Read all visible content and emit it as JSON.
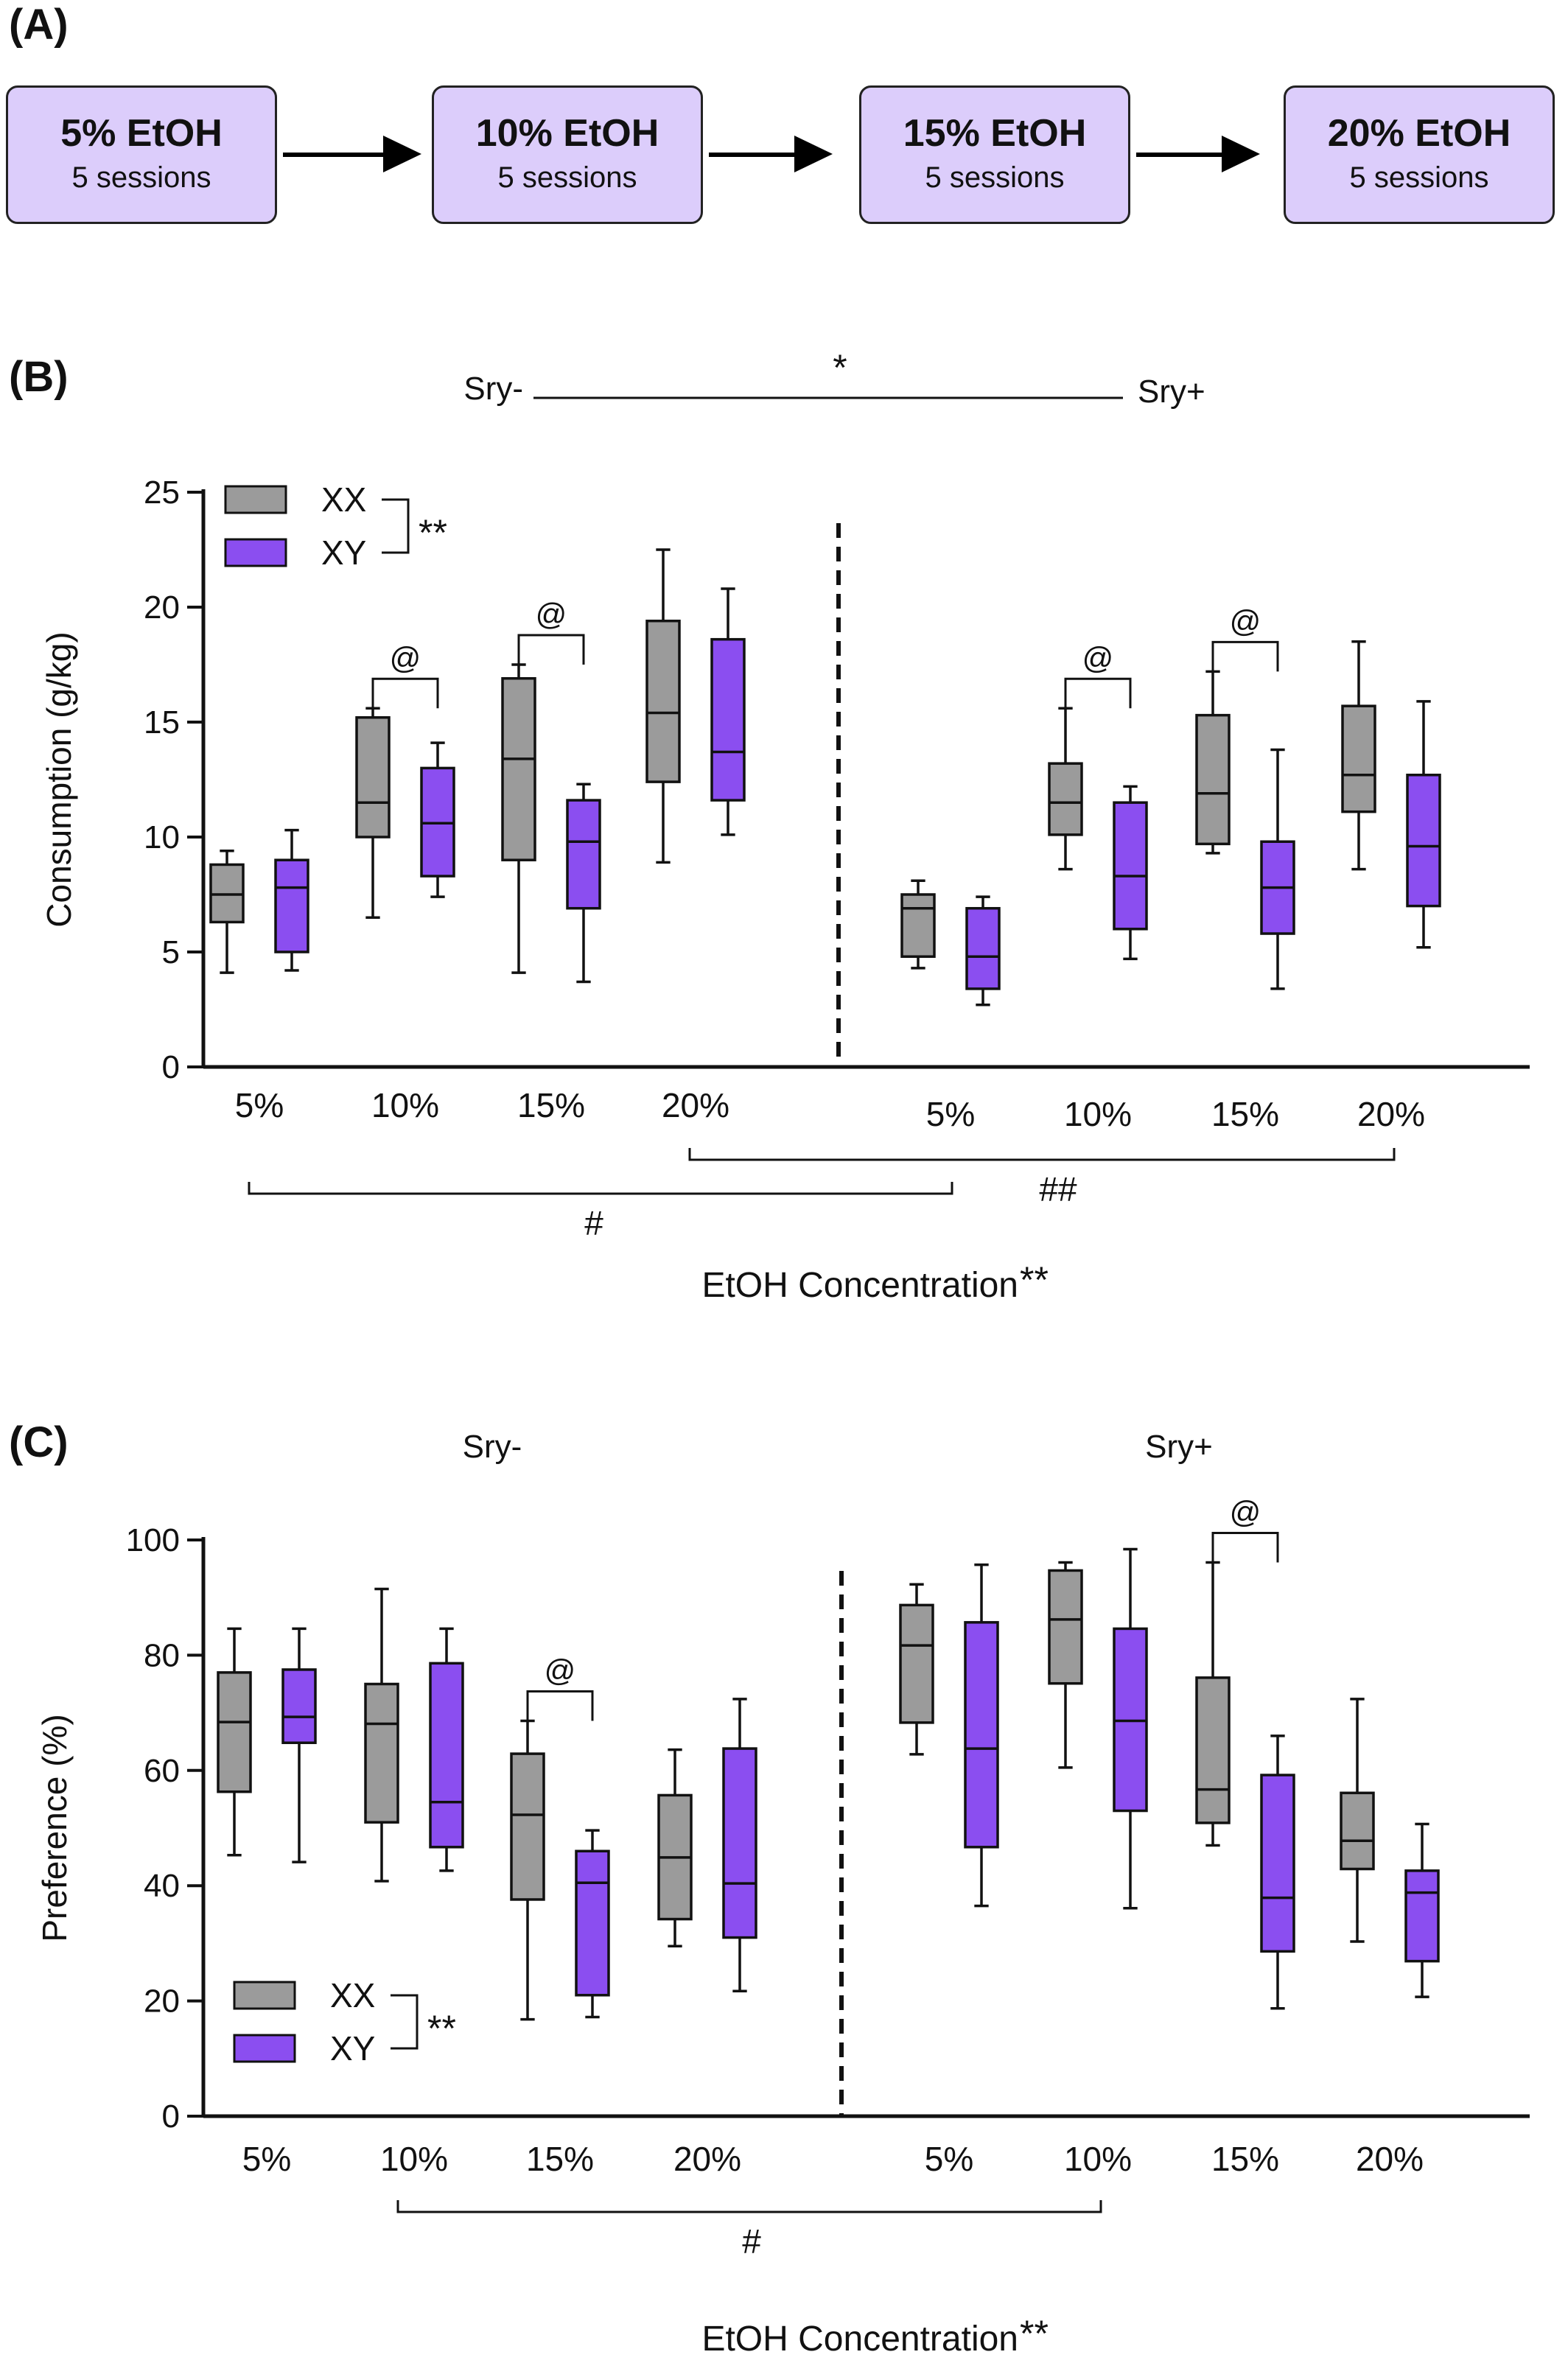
{
  "panel_a": {
    "label": "(A)",
    "steps": [
      {
        "concentration": "5% EtOH",
        "sessions": "5 sessions"
      },
      {
        "concentration": "10% EtOH",
        "sessions": "5 sessions"
      },
      {
        "concentration": "15% EtOH",
        "sessions": "5 sessions"
      },
      {
        "concentration": "20% EtOH",
        "sessions": "5 sessions"
      }
    ]
  },
  "colors": {
    "XX": "#9b9b9b",
    "XY": "#8b4ef0",
    "line": "#111111"
  },
  "chart_data": [
    {
      "id": "B",
      "panel_label": "(B)",
      "type": "box",
      "ylabel": "Consumption (g/kg)",
      "xlabel": "EtOH Concentration",
      "xlabel_mark": "**",
      "ylim": [
        0,
        25
      ],
      "yticks": [
        0,
        5,
        10,
        15,
        20,
        25
      ],
      "legend": {
        "position": "top-left",
        "entries": [
          "XX",
          "XY"
        ],
        "mark": "**"
      },
      "groups": [
        {
          "name": "Sry-",
          "categories": [
            "5%",
            "10%",
            "15%",
            "20%"
          ],
          "series": [
            {
              "name": "XX",
              "boxes": [
                {
                  "min": 4.1,
                  "q1": 6.3,
                  "median": 7.5,
                  "q3": 8.8,
                  "max": 9.4
                },
                {
                  "min": 6.5,
                  "q1": 10.0,
                  "median": 11.5,
                  "q3": 15.2,
                  "max": 15.6
                },
                {
                  "min": 4.1,
                  "q1": 9.0,
                  "median": 13.4,
                  "q3": 16.9,
                  "max": 17.5
                },
                {
                  "min": 8.9,
                  "q1": 12.4,
                  "median": 15.4,
                  "q3": 19.4,
                  "max": 22.5
                }
              ]
            },
            {
              "name": "XY",
              "boxes": [
                {
                  "min": 4.2,
                  "q1": 5.0,
                  "median": 7.8,
                  "q3": 9.0,
                  "max": 10.3
                },
                {
                  "min": 7.4,
                  "q1": 8.3,
                  "median": 10.6,
                  "q3": 13.0,
                  "max": 14.1
                },
                {
                  "min": 3.7,
                  "q1": 6.9,
                  "median": 9.8,
                  "q3": 11.6,
                  "max": 12.3
                },
                {
                  "min": 10.1,
                  "q1": 11.6,
                  "median": 13.7,
                  "q3": 18.6,
                  "max": 20.8
                }
              ]
            }
          ]
        },
        {
          "name": "Sry+",
          "categories": [
            "5%",
            "10%",
            "15%",
            "20%"
          ],
          "series": [
            {
              "name": "XX",
              "boxes": [
                {
                  "min": 4.3,
                  "q1": 4.8,
                  "median": 6.9,
                  "q3": 7.5,
                  "max": 8.1
                },
                {
                  "min": 8.6,
                  "q1": 10.1,
                  "median": 11.5,
                  "q3": 13.2,
                  "max": 15.6
                },
                {
                  "min": 9.3,
                  "q1": 9.7,
                  "median": 11.9,
                  "q3": 15.3,
                  "max": 17.2
                },
                {
                  "min": 8.6,
                  "q1": 11.1,
                  "median": 12.7,
                  "q3": 15.7,
                  "max": 18.5
                }
              ]
            },
            {
              "name": "XY",
              "boxes": [
                {
                  "min": 2.7,
                  "q1": 3.4,
                  "median": 4.8,
                  "q3": 6.9,
                  "max": 7.4
                },
                {
                  "min": 4.7,
                  "q1": 6.0,
                  "median": 8.3,
                  "q3": 11.5,
                  "max": 12.2
                },
                {
                  "min": 3.4,
                  "q1": 5.8,
                  "median": 7.8,
                  "q3": 9.8,
                  "max": 13.8
                },
                {
                  "min": 5.2,
                  "q1": 7.0,
                  "median": 9.6,
                  "q3": 12.7,
                  "max": 15.9
                }
              ]
            }
          ]
        }
      ],
      "annotations": {
        "top": {
          "left": "Sry-",
          "right": "Sry+",
          "mark": "*"
        },
        "pair_marks": [
          {
            "group": 0,
            "category": 1,
            "mark": "@"
          },
          {
            "group": 0,
            "category": 2,
            "mark": "@"
          },
          {
            "group": 1,
            "category": 1,
            "mark": "@"
          },
          {
            "group": 1,
            "category": 2,
            "mark": "@"
          }
        ],
        "bottom_brackets": [
          {
            "from": "Sry- 5%",
            "to": "Sry+ 5%",
            "mark": "#"
          },
          {
            "from": "Sry- 20%",
            "to": "Sry+ 20%",
            "mark": "##"
          }
        ]
      }
    },
    {
      "id": "C",
      "panel_label": "(C)",
      "type": "box",
      "ylabel": "Preference (%)",
      "xlabel": "EtOH Concentration",
      "xlabel_mark": "**",
      "ylim": [
        0,
        100
      ],
      "yticks": [
        0,
        20,
        40,
        60,
        80,
        100
      ],
      "legend": {
        "position": "bottom-left",
        "entries": [
          "XX",
          "XY"
        ],
        "mark": "**"
      },
      "groups": [
        {
          "name": "Sry-",
          "categories": [
            "5%",
            "10%",
            "15%",
            "20%"
          ],
          "series": [
            {
              "name": "XX",
              "boxes": [
                {
                  "min": 45.3,
                  "q1": 56.3,
                  "median": 68.4,
                  "q3": 77.0,
                  "max": 84.6
                },
                {
                  "min": 40.8,
                  "q1": 51.0,
                  "median": 68.1,
                  "q3": 75.0,
                  "max": 91.5
                },
                {
                  "min": 16.8,
                  "q1": 37.6,
                  "median": 52.3,
                  "q3": 62.9,
                  "max": 68.6
                },
                {
                  "min": 29.5,
                  "q1": 34.2,
                  "median": 44.9,
                  "q3": 55.7,
                  "max": 63.6
                }
              ]
            },
            {
              "name": "XY",
              "boxes": [
                {
                  "min": 44.1,
                  "q1": 64.8,
                  "median": 69.3,
                  "q3": 77.5,
                  "max": 84.6
                },
                {
                  "min": 42.6,
                  "q1": 46.7,
                  "median": 54.5,
                  "q3": 78.6,
                  "max": 84.6
                },
                {
                  "min": 17.2,
                  "q1": 21.0,
                  "median": 40.5,
                  "q3": 46.0,
                  "max": 49.6
                },
                {
                  "min": 21.7,
                  "q1": 31.0,
                  "median": 40.4,
                  "q3": 63.8,
                  "max": 72.4
                }
              ]
            }
          ]
        },
        {
          "name": "Sry+",
          "categories": [
            "5%",
            "10%",
            "15%",
            "20%"
          ],
          "series": [
            {
              "name": "XX",
              "boxes": [
                {
                  "min": 62.8,
                  "q1": 68.3,
                  "median": 81.7,
                  "q3": 88.7,
                  "max": 92.3
                },
                {
                  "min": 60.5,
                  "q1": 75.1,
                  "median": 86.2,
                  "q3": 94.7,
                  "max": 96.1
                },
                {
                  "min": 47.0,
                  "q1": 50.9,
                  "median": 56.7,
                  "q3": 76.1,
                  "max": 96.1
                },
                {
                  "min": 30.3,
                  "q1": 42.9,
                  "median": 47.8,
                  "q3": 56.1,
                  "max": 72.4
                }
              ]
            },
            {
              "name": "XY",
              "boxes": [
                {
                  "min": 36.5,
                  "q1": 46.7,
                  "median": 63.8,
                  "q3": 85.7,
                  "max": 95.7
                },
                {
                  "min": 36.1,
                  "q1": 53.0,
                  "median": 68.6,
                  "q3": 84.6,
                  "max": 98.4
                },
                {
                  "min": 18.7,
                  "q1": 28.6,
                  "median": 37.9,
                  "q3": 59.2,
                  "max": 66.0
                },
                {
                  "min": 20.7,
                  "q1": 26.9,
                  "median": 38.8,
                  "q3": 42.6,
                  "max": 50.7
                }
              ]
            }
          ]
        }
      ],
      "annotations": {
        "group_titles": [
          "Sry-",
          "Sry+"
        ],
        "pair_marks": [
          {
            "group": 0,
            "category": 2,
            "mark": "@"
          },
          {
            "group": 1,
            "category": 2,
            "mark": "@"
          }
        ],
        "bottom_brackets": [
          {
            "from": "Sry- 10%",
            "to": "Sry+ 10%",
            "mark": "#"
          }
        ]
      }
    }
  ]
}
